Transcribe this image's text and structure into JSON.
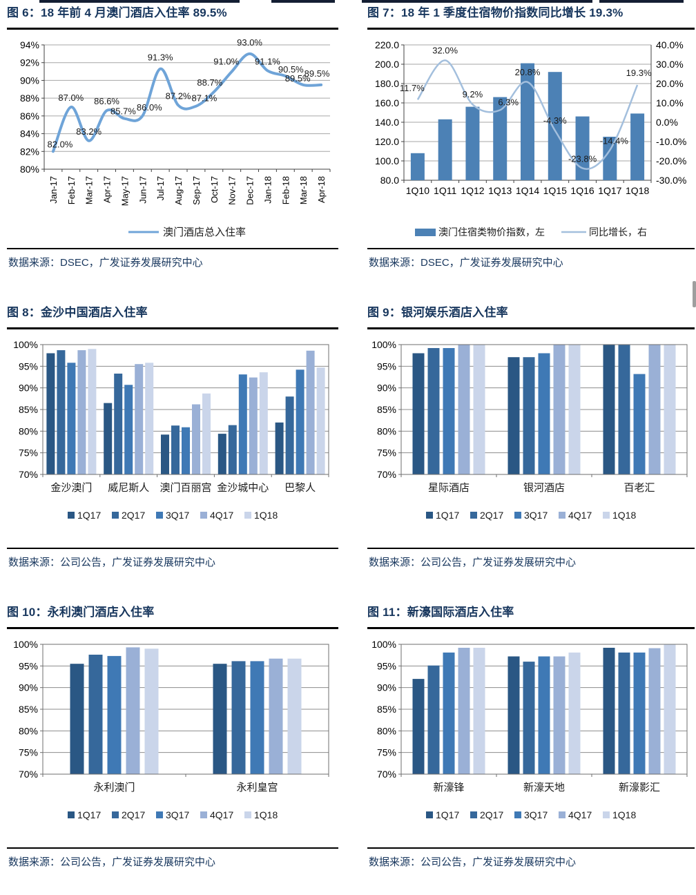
{
  "chart_data": [
    {
      "title": "图 6：18 年前 4 月澳门酒店入住率 89.5%",
      "source": "数据来源：DSEC，广发证券发展研究中心",
      "type": "line",
      "legend": "澳门酒店总入住率",
      "line_color": "#6FA4D8",
      "x": [
        "Jan-17",
        "Feb-17",
        "Mar-17",
        "Apr-17",
        "May-17",
        "Jun-17",
        "Jul-17",
        "Aug-17",
        "Sep-17",
        "Oct-17",
        "Nov-17",
        "Dec-17",
        "Jan-18",
        "Feb-18",
        "Mar-18",
        "Apr-18"
      ],
      "values": [
        82.0,
        87.0,
        83.2,
        86.6,
        85.7,
        86.0,
        91.3,
        87.2,
        87.1,
        88.7,
        91.0,
        93.0,
        91.1,
        90.5,
        89.5,
        89.5
      ],
      "point_labels": [
        "82.0%",
        "87.0%",
        "83.2%",
        "86.6%",
        "85.7%",
        "86.0%",
        "91.3%",
        "87.2%",
        "87.1%",
        "88.7%",
        "91.0%",
        "93.0%",
        "91.1%",
        "90.5%",
        "89.5%",
        "89.5%"
      ],
      "ylim": [
        80,
        94
      ],
      "yticks": [
        "94%",
        "92%",
        "90%",
        "88%",
        "86%",
        "84%",
        "82%",
        "80%"
      ],
      "grid": true,
      "legend_position": "bottom"
    },
    {
      "title": "图 7：18 年 1 季度住宿物价指数同比增长 19.3%",
      "source": "数据来源：DSEC，广发证券发展研究中心",
      "type": "combo",
      "bar_legend": "澳门住宿类物价指数，左",
      "line_legend": "同比增长，右",
      "bar_color": "#4C81B5",
      "line_color": "#A3BFDD",
      "x": [
        "1Q10",
        "1Q11",
        "1Q12",
        "1Q13",
        "1Q14",
        "1Q15",
        "1Q16",
        "1Q17",
        "1Q18"
      ],
      "bar_values": [
        108,
        143,
        156,
        166,
        201,
        192,
        146,
        125,
        149
      ],
      "line_values": [
        11.7,
        32.0,
        9.2,
        6.3,
        20.8,
        -4.3,
        -23.8,
        -14.4,
        19.3
      ],
      "line_labels": [
        "11.7%",
        "32.0%",
        "9.2%",
        "6.3%",
        "20.8%",
        "-4.3%",
        "-23.8%",
        "-14.4%",
        "19.3%"
      ],
      "ylim_left": [
        80,
        220
      ],
      "yticks_left": [
        "220.0",
        "200.0",
        "180.0",
        "160.0",
        "140.0",
        "120.0",
        "100.0",
        "80.0"
      ],
      "ylim_right": [
        -30,
        40
      ],
      "yticks_right": [
        "40.0%",
        "30.0%",
        "20.0%",
        "10.0%",
        "0.0%",
        "-10.0%",
        "-20.0%",
        "-30.0%"
      ],
      "grid": true,
      "legend_position": "bottom"
    },
    {
      "title": "图 8：金沙中国酒店入住率",
      "source": "数据来源：公司公告，广发证券发展研究中心",
      "type": "grouped_bar",
      "categories": [
        "金沙澳门",
        "威尼斯人",
        "澳门百丽宫",
        "金沙城中心",
        "巴黎人"
      ],
      "series": [
        {
          "name": "1Q17",
          "values": [
            98.0,
            86.5,
            79.2,
            79.4,
            82.0
          ]
        },
        {
          "name": "2Q17",
          "values": [
            98.7,
            93.3,
            81.3,
            81.4,
            88.0
          ]
        },
        {
          "name": "3Q17",
          "values": [
            95.8,
            90.7,
            80.9,
            93.1,
            94.2
          ]
        },
        {
          "name": "4Q17",
          "values": [
            98.7,
            95.5,
            86.2,
            92.4,
            98.6
          ]
        },
        {
          "name": "1Q18",
          "values": [
            99.0,
            95.8,
            88.7,
            93.6,
            94.7
          ]
        }
      ],
      "colors": [
        "#2A5784",
        "#36689B",
        "#3F79B5",
        "#9AB0D6",
        "#CAD5EA"
      ],
      "ylim": [
        70,
        100
      ],
      "yticks": [
        "100%",
        "95%",
        "90%",
        "85%",
        "80%",
        "75%",
        "70%"
      ],
      "grid": true,
      "legend_position": "bottom"
    },
    {
      "title": "图 9：银河娱乐酒店入住率",
      "source": "数据来源：公司公告，广发证券发展研究中心",
      "type": "grouped_bar",
      "categories": [
        "星际酒店",
        "银河酒店",
        "百老汇"
      ],
      "series": [
        {
          "name": "1Q17",
          "values": [
            98.0,
            97.1,
            100
          ]
        },
        {
          "name": "2Q17",
          "values": [
            99.2,
            97.1,
            100
          ]
        },
        {
          "name": "3Q17",
          "values": [
            99.2,
            98.0,
            93.2
          ]
        },
        {
          "name": "4Q17",
          "values": [
            100,
            100,
            100
          ]
        },
        {
          "name": "1Q18",
          "values": [
            100,
            100,
            100
          ]
        }
      ],
      "colors": [
        "#2A5784",
        "#36689B",
        "#3F79B5",
        "#9AB0D6",
        "#CAD5EA"
      ],
      "ylim": [
        70,
        100
      ],
      "yticks": [
        "100%",
        "95%",
        "90%",
        "85%",
        "80%",
        "75%",
        "70%"
      ],
      "grid": true,
      "legend_position": "bottom"
    },
    {
      "title": "图 10：永利澳门酒店入住率",
      "source": "数据来源：公司公告，广发证券发展研究中心",
      "type": "grouped_bar",
      "categories": [
        "永利澳门",
        "永利皇宫"
      ],
      "series": [
        {
          "name": "1Q17",
          "values": [
            95.5,
            95.5
          ]
        },
        {
          "name": "2Q17",
          "values": [
            97.6,
            96.1
          ]
        },
        {
          "name": "3Q17",
          "values": [
            97.3,
            96.1
          ]
        },
        {
          "name": "4Q17",
          "values": [
            99.3,
            96.7
          ]
        },
        {
          "name": "1Q18",
          "values": [
            99.0,
            96.7
          ]
        }
      ],
      "colors": [
        "#2A5784",
        "#36689B",
        "#3F79B5",
        "#9AB0D6",
        "#CAD5EA"
      ],
      "ylim": [
        70,
        100
      ],
      "yticks": [
        "100%",
        "95%",
        "90%",
        "85%",
        "80%",
        "75%",
        "70%"
      ],
      "grid": true,
      "legend_position": "bottom"
    },
    {
      "title": "图 11：新濠国际酒店入住率",
      "source": "数据来源：公司公告，广发证券发展研究中心",
      "type": "grouped_bar",
      "categories": [
        "新濠锋",
        "新濠天地",
        "新濠影汇"
      ],
      "series": [
        {
          "name": "1Q17",
          "values": [
            92.0,
            97.2,
            99.2
          ]
        },
        {
          "name": "2Q17",
          "values": [
            95.1,
            96.0,
            98.1
          ]
        },
        {
          "name": "3Q17",
          "values": [
            98.1,
            97.2,
            98.1
          ]
        },
        {
          "name": "4Q17",
          "values": [
            99.2,
            97.2,
            99.1
          ]
        },
        {
          "name": "1Q18",
          "values": [
            99.2,
            98.1,
            100
          ]
        }
      ],
      "colors": [
        "#2A5784",
        "#36689B",
        "#3F79B5",
        "#9AB0D6",
        "#CAD5EA"
      ],
      "ylim": [
        70,
        100
      ],
      "yticks": [
        "100%",
        "95%",
        "90%",
        "85%",
        "80%",
        "75%",
        "70%"
      ],
      "grid": true,
      "legend_position": "bottom"
    }
  ]
}
